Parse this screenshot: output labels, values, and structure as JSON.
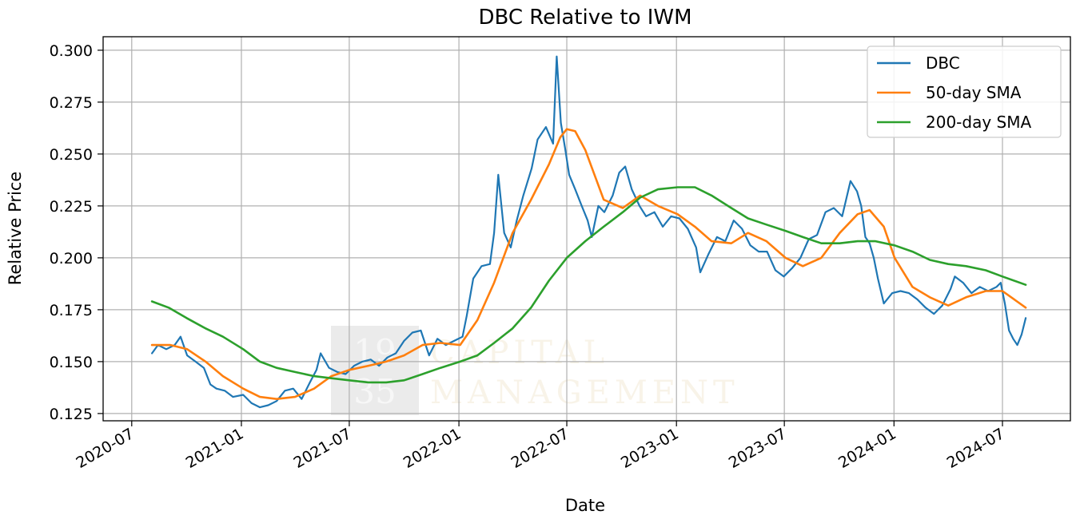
{
  "chart_data": {
    "type": "line",
    "title": "DBC Relative to IWM",
    "xlabel": "Date",
    "ylabel": "Relative Price",
    "x_ticks": [
      "2020-07",
      "2021-01",
      "2021-07",
      "2022-01",
      "2022-07",
      "2023-01",
      "2023-07",
      "2024-01",
      "2024-07"
    ],
    "y_ticks": [
      "0.125",
      "0.150",
      "0.175",
      "0.200",
      "0.225",
      "0.250",
      "0.275",
      "0.300"
    ],
    "xlim": [
      "2020-05-14",
      "2024-10-23"
    ],
    "ylim": [
      0.1215,
      0.3065
    ],
    "grid": true,
    "legend_position": "upper right",
    "watermark": {
      "line1a": "19",
      "line1b": "CAPITAL",
      "line2a": "35",
      "line2b": "MANAGEMENT"
    },
    "series": [
      {
        "name": "DBC",
        "color": "#1f77b4",
        "points": [
          [
            "2020-08-04",
            0.154
          ],
          [
            "2020-08-14",
            0.158
          ],
          [
            "2020-08-28",
            0.156
          ],
          [
            "2020-09-11",
            0.158
          ],
          [
            "2020-09-21",
            0.162
          ],
          [
            "2020-10-02",
            0.153
          ],
          [
            "2020-10-16",
            0.15
          ],
          [
            "2020-10-30",
            0.147
          ],
          [
            "2020-11-10",
            0.139
          ],
          [
            "2020-11-20",
            0.137
          ],
          [
            "2020-12-04",
            0.136
          ],
          [
            "2020-12-18",
            0.133
          ],
          [
            "2021-01-04",
            0.134
          ],
          [
            "2021-01-18",
            0.13
          ],
          [
            "2021-02-01",
            0.128
          ],
          [
            "2021-02-15",
            0.129
          ],
          [
            "2021-03-01",
            0.131
          ],
          [
            "2021-03-15",
            0.136
          ],
          [
            "2021-03-29",
            0.137
          ],
          [
            "2021-04-12",
            0.132
          ],
          [
            "2021-04-26",
            0.14
          ],
          [
            "2021-05-07",
            0.146
          ],
          [
            "2021-05-14",
            0.154
          ],
          [
            "2021-05-28",
            0.147
          ],
          [
            "2021-06-11",
            0.145
          ],
          [
            "2021-06-25",
            0.144
          ],
          [
            "2021-07-09",
            0.148
          ],
          [
            "2021-07-23",
            0.15
          ],
          [
            "2021-08-06",
            0.151
          ],
          [
            "2021-08-20",
            0.148
          ],
          [
            "2021-09-03",
            0.152
          ],
          [
            "2021-09-17",
            0.154
          ],
          [
            "2021-10-01",
            0.16
          ],
          [
            "2021-10-15",
            0.164
          ],
          [
            "2021-10-29",
            0.165
          ],
          [
            "2021-11-12",
            0.153
          ],
          [
            "2021-11-26",
            0.161
          ],
          [
            "2021-12-10",
            0.158
          ],
          [
            "2021-12-24",
            0.16
          ],
          [
            "2022-01-07",
            0.162
          ],
          [
            "2022-01-14",
            0.172
          ],
          [
            "2022-01-25",
            0.19
          ],
          [
            "2022-02-08",
            0.196
          ],
          [
            "2022-02-22",
            0.197
          ],
          [
            "2022-03-01",
            0.212
          ],
          [
            "2022-03-08",
            0.24
          ],
          [
            "2022-03-18",
            0.212
          ],
          [
            "2022-03-29",
            0.205
          ],
          [
            "2022-04-08",
            0.218
          ],
          [
            "2022-04-19",
            0.23
          ],
          [
            "2022-05-03",
            0.243
          ],
          [
            "2022-05-13",
            0.257
          ],
          [
            "2022-05-27",
            0.263
          ],
          [
            "2022-06-08",
            0.255
          ],
          [
            "2022-06-14",
            0.297
          ],
          [
            "2022-06-21",
            0.265
          ],
          [
            "2022-06-28",
            0.253
          ],
          [
            "2022-07-05",
            0.24
          ],
          [
            "2022-07-15",
            0.233
          ],
          [
            "2022-07-26",
            0.225
          ],
          [
            "2022-08-05",
            0.218
          ],
          [
            "2022-08-12",
            0.21
          ],
          [
            "2022-08-23",
            0.225
          ],
          [
            "2022-09-02",
            0.222
          ],
          [
            "2022-09-16",
            0.23
          ],
          [
            "2022-09-27",
            0.241
          ],
          [
            "2022-10-07",
            0.244
          ],
          [
            "2022-10-18",
            0.233
          ],
          [
            "2022-10-31",
            0.225
          ],
          [
            "2022-11-11",
            0.22
          ],
          [
            "2022-11-25",
            0.222
          ],
          [
            "2022-12-09",
            0.215
          ],
          [
            "2022-12-23",
            0.22
          ],
          [
            "2023-01-06",
            0.219
          ],
          [
            "2023-01-20",
            0.214
          ],
          [
            "2023-02-03",
            0.205
          ],
          [
            "2023-02-10",
            0.193
          ],
          [
            "2023-02-24",
            0.202
          ],
          [
            "2023-03-10",
            0.21
          ],
          [
            "2023-03-24",
            0.208
          ],
          [
            "2023-04-07",
            0.218
          ],
          [
            "2023-04-21",
            0.214
          ],
          [
            "2023-05-05",
            0.206
          ],
          [
            "2023-05-19",
            0.203
          ],
          [
            "2023-06-02",
            0.203
          ],
          [
            "2023-06-16",
            0.194
          ],
          [
            "2023-06-30",
            0.191
          ],
          [
            "2023-07-14",
            0.195
          ],
          [
            "2023-07-28",
            0.2
          ],
          [
            "2023-08-11",
            0.209
          ],
          [
            "2023-08-25",
            0.211
          ],
          [
            "2023-09-08",
            0.222
          ],
          [
            "2023-09-22",
            0.224
          ],
          [
            "2023-10-06",
            0.22
          ],
          [
            "2023-10-20",
            0.237
          ],
          [
            "2023-10-31",
            0.232
          ],
          [
            "2023-11-07",
            0.225
          ],
          [
            "2023-11-14",
            0.21
          ],
          [
            "2023-11-21",
            0.207
          ],
          [
            "2023-11-28",
            0.2
          ],
          [
            "2023-12-05",
            0.19
          ],
          [
            "2023-12-15",
            0.178
          ],
          [
            "2023-12-29",
            0.183
          ],
          [
            "2024-01-12",
            0.184
          ],
          [
            "2024-01-26",
            0.183
          ],
          [
            "2024-02-09",
            0.18
          ],
          [
            "2024-02-23",
            0.176
          ],
          [
            "2024-03-08",
            0.173
          ],
          [
            "2024-03-22",
            0.177
          ],
          [
            "2024-04-05",
            0.185
          ],
          [
            "2024-04-12",
            0.191
          ],
          [
            "2024-04-26",
            0.188
          ],
          [
            "2024-05-10",
            0.183
          ],
          [
            "2024-05-24",
            0.186
          ],
          [
            "2024-06-07",
            0.184
          ],
          [
            "2024-06-21",
            0.186
          ],
          [
            "2024-06-28",
            0.188
          ],
          [
            "2024-07-05",
            0.178
          ],
          [
            "2024-07-12",
            0.165
          ],
          [
            "2024-07-19",
            0.161
          ],
          [
            "2024-07-26",
            0.158
          ],
          [
            "2024-08-02",
            0.163
          ],
          [
            "2024-08-09",
            0.171
          ]
        ]
      },
      {
        "name": "50-day SMA",
        "color": "#ff7f0e",
        "points": [
          [
            "2020-08-04",
            0.158
          ],
          [
            "2020-09-04",
            0.158
          ],
          [
            "2020-10-02",
            0.156
          ],
          [
            "2020-11-02",
            0.15
          ],
          [
            "2020-12-01",
            0.143
          ],
          [
            "2021-01-04",
            0.137
          ],
          [
            "2021-02-01",
            0.133
          ],
          [
            "2021-03-01",
            0.132
          ],
          [
            "2021-04-01",
            0.133
          ],
          [
            "2021-05-03",
            0.137
          ],
          [
            "2021-06-01",
            0.143
          ],
          [
            "2021-07-01",
            0.146
          ],
          [
            "2021-08-02",
            0.148
          ],
          [
            "2021-09-01",
            0.15
          ],
          [
            "2021-10-01",
            0.153
          ],
          [
            "2021-11-01",
            0.158
          ],
          [
            "2021-12-01",
            0.159
          ],
          [
            "2022-01-03",
            0.158
          ],
          [
            "2022-02-01",
            0.17
          ],
          [
            "2022-03-01",
            0.188
          ],
          [
            "2022-04-01",
            0.212
          ],
          [
            "2022-05-02",
            0.228
          ],
          [
            "2022-06-01",
            0.245
          ],
          [
            "2022-06-20",
            0.258
          ],
          [
            "2022-07-01",
            0.262
          ],
          [
            "2022-07-15",
            0.261
          ],
          [
            "2022-08-01",
            0.252
          ],
          [
            "2022-09-01",
            0.228
          ],
          [
            "2022-10-03",
            0.224
          ],
          [
            "2022-11-01",
            0.23
          ],
          [
            "2022-12-01",
            0.225
          ],
          [
            "2023-01-03",
            0.221
          ],
          [
            "2023-02-01",
            0.215
          ],
          [
            "2023-03-01",
            0.208
          ],
          [
            "2023-04-03",
            0.207
          ],
          [
            "2023-05-01",
            0.212
          ],
          [
            "2023-06-01",
            0.208
          ],
          [
            "2023-07-03",
            0.2
          ],
          [
            "2023-08-01",
            0.196
          ],
          [
            "2023-09-01",
            0.2
          ],
          [
            "2023-10-02",
            0.212
          ],
          [
            "2023-11-01",
            0.221
          ],
          [
            "2023-11-21",
            0.223
          ],
          [
            "2023-12-15",
            0.215
          ],
          [
            "2024-01-02",
            0.2
          ],
          [
            "2024-02-01",
            0.186
          ],
          [
            "2024-03-01",
            0.181
          ],
          [
            "2024-04-01",
            0.177
          ],
          [
            "2024-05-01",
            0.181
          ],
          [
            "2024-06-03",
            0.184
          ],
          [
            "2024-07-01",
            0.184
          ],
          [
            "2024-08-09",
            0.176
          ]
        ]
      },
      {
        "name": "200-day SMA",
        "color": "#2ca02c",
        "points": [
          [
            "2020-08-04",
            0.179
          ],
          [
            "2020-09-01",
            0.176
          ],
          [
            "2020-10-01",
            0.171
          ],
          [
            "2020-11-02",
            0.166
          ],
          [
            "2020-12-01",
            0.162
          ],
          [
            "2021-01-04",
            0.156
          ],
          [
            "2021-02-01",
            0.15
          ],
          [
            "2021-03-01",
            0.147
          ],
          [
            "2021-04-01",
            0.145
          ],
          [
            "2021-05-03",
            0.143
          ],
          [
            "2021-06-01",
            0.142
          ],
          [
            "2021-07-01",
            0.141
          ],
          [
            "2021-08-02",
            0.14
          ],
          [
            "2021-09-01",
            0.14
          ],
          [
            "2021-10-01",
            0.141
          ],
          [
            "2021-11-01",
            0.144
          ],
          [
            "2021-12-01",
            0.147
          ],
          [
            "2022-01-03",
            0.15
          ],
          [
            "2022-02-01",
            0.153
          ],
          [
            "2022-03-01",
            0.159
          ],
          [
            "2022-04-01",
            0.166
          ],
          [
            "2022-05-02",
            0.176
          ],
          [
            "2022-06-01",
            0.189
          ],
          [
            "2022-07-01",
            0.2
          ],
          [
            "2022-08-01",
            0.208
          ],
          [
            "2022-09-01",
            0.215
          ],
          [
            "2022-10-03",
            0.222
          ],
          [
            "2022-11-01",
            0.229
          ],
          [
            "2022-12-01",
            0.233
          ],
          [
            "2023-01-03",
            0.234
          ],
          [
            "2023-02-01",
            0.234
          ],
          [
            "2023-03-01",
            0.23
          ],
          [
            "2023-04-03",
            0.224
          ],
          [
            "2023-05-01",
            0.219
          ],
          [
            "2023-06-01",
            0.216
          ],
          [
            "2023-07-03",
            0.213
          ],
          [
            "2023-08-01",
            0.21
          ],
          [
            "2023-09-01",
            0.207
          ],
          [
            "2023-10-02",
            0.207
          ],
          [
            "2023-11-01",
            0.208
          ],
          [
            "2023-12-01",
            0.208
          ],
          [
            "2024-01-02",
            0.206
          ],
          [
            "2024-02-01",
            0.203
          ],
          [
            "2024-03-01",
            0.199
          ],
          [
            "2024-04-01",
            0.197
          ],
          [
            "2024-05-01",
            0.196
          ],
          [
            "2024-06-03",
            0.194
          ],
          [
            "2024-07-01",
            0.191
          ],
          [
            "2024-08-09",
            0.187
          ]
        ]
      }
    ]
  }
}
